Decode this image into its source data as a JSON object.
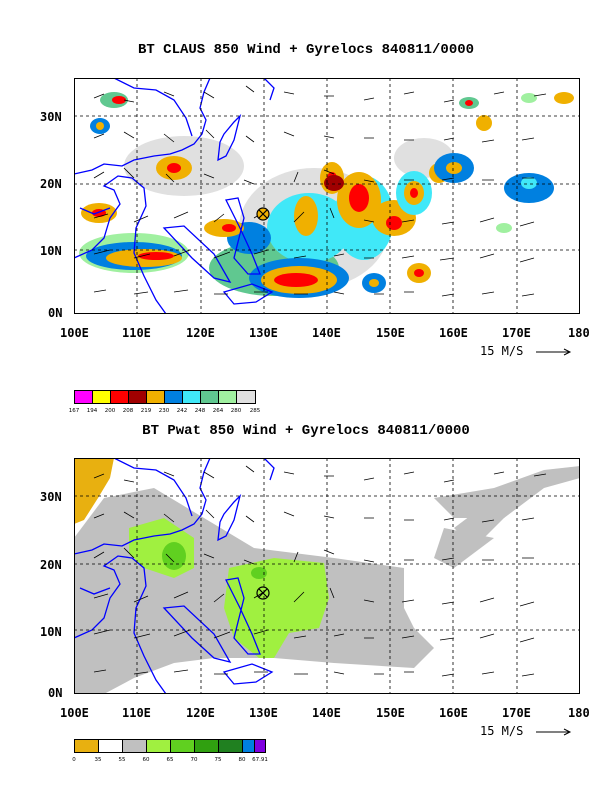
{
  "top_panel": {
    "title": "BT CLAUS 850 Wind + Gyrelocs 840811/0000",
    "lon_labels": [
      "100E",
      "110E",
      "120E",
      "130E",
      "140E",
      "150E",
      "160E",
      "170E",
      "180"
    ],
    "lat_labels": [
      "30N",
      "20N",
      "10N",
      "0N"
    ],
    "scale_label": "15 M/S",
    "legend": {
      "colors": [
        "#ff00ff",
        "#ffff00",
        "#ff0000",
        "#a00000",
        "#f0b000",
        "#0080e0",
        "#40e8f8",
        "#60c890",
        "#a0f0a0",
        "#e0e0e0"
      ],
      "ticks": [
        "167",
        "194",
        "200",
        "208",
        "219",
        "230",
        "242",
        "248",
        "264",
        "280",
        "285"
      ]
    }
  },
  "bottom_panel": {
    "title": "BT Pwat 850 Wind + Gyrelocs 840811/0000",
    "lon_labels": [
      "100E",
      "110E",
      "120E",
      "130E",
      "140E",
      "150E",
      "160E",
      "170E",
      "180"
    ],
    "lat_labels": [
      "30N",
      "20N",
      "10N",
      "0N"
    ],
    "scale_label": "15 M/S",
    "legend": {
      "colors": [
        "#e8b010",
        "#ffffff",
        "#c0c0c0",
        "#a0f040",
        "#60d020",
        "#30a010",
        "#208020",
        "#0080e0",
        "#8000e0"
      ],
      "ticks": [
        "0",
        "35",
        "55",
        "60",
        "65",
        "70",
        "75",
        "80",
        "67.91"
      ]
    }
  },
  "colors": {
    "coast": "#0000ff",
    "frame": "#000000"
  }
}
